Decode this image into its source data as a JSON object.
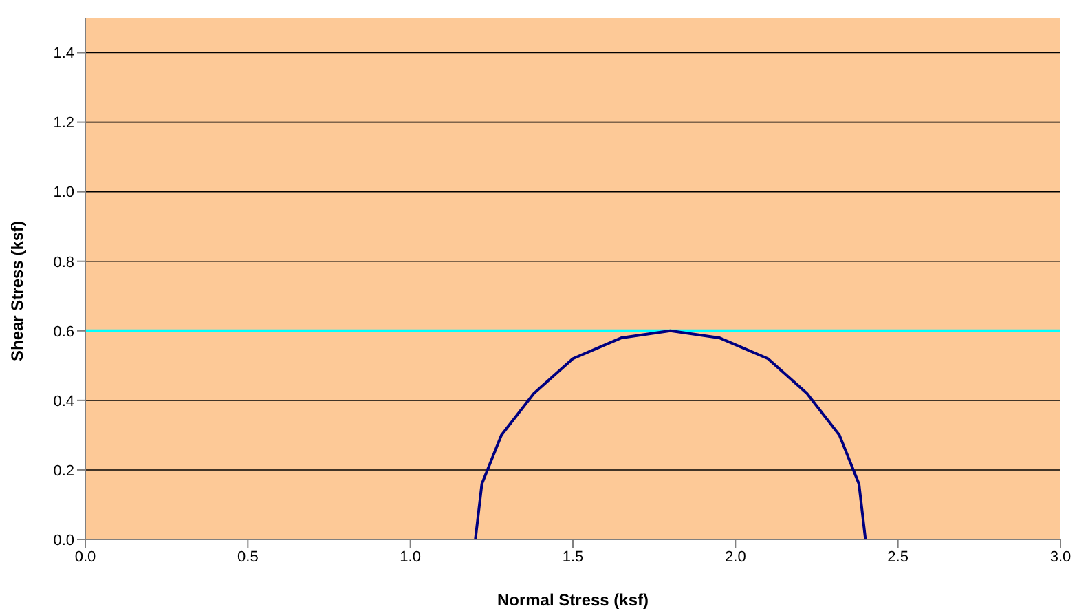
{
  "chart_data": {
    "type": "line",
    "xlabel": "Normal Stress (ksf)",
    "ylabel": "Shear Stress (ksf)",
    "x": [
      1.2,
      1.22,
      1.28,
      1.38,
      1.5,
      1.65,
      1.8,
      1.95,
      2.1,
      2.22,
      2.32,
      2.38,
      2.4
    ],
    "series": [
      {
        "color": "#000080",
        "values": [
          0,
          0.16,
          0.3,
          0.42,
          0.52,
          0.58,
          0.6,
          0.58,
          0.52,
          0.42,
          0.3,
          0.16,
          0
        ]
      }
    ],
    "ref_lines": [
      {
        "axis": "y",
        "value": 0.6,
        "color": "#00ffff"
      }
    ],
    "xlim": [
      0,
      3
    ],
    "xticks": [
      {
        "value": 0,
        "label": "0.0"
      },
      0.5,
      {
        "value": 1,
        "label": "1.0"
      },
      1.5,
      {
        "value": 2,
        "label": "2.0"
      },
      2.5,
      {
        "value": 3,
        "label": "3.0"
      }
    ],
    "ylim": [
      0,
      1.5
    ],
    "yticks": [
      {
        "value": 0,
        "label": "0.0"
      },
      0.2,
      0.4,
      0.6,
      0.8,
      {
        "value": 1,
        "label": "1.0"
      },
      1.2,
      1.4
    ],
    "grid": "y",
    "marker": "none",
    "line_style": "solid"
  }
}
